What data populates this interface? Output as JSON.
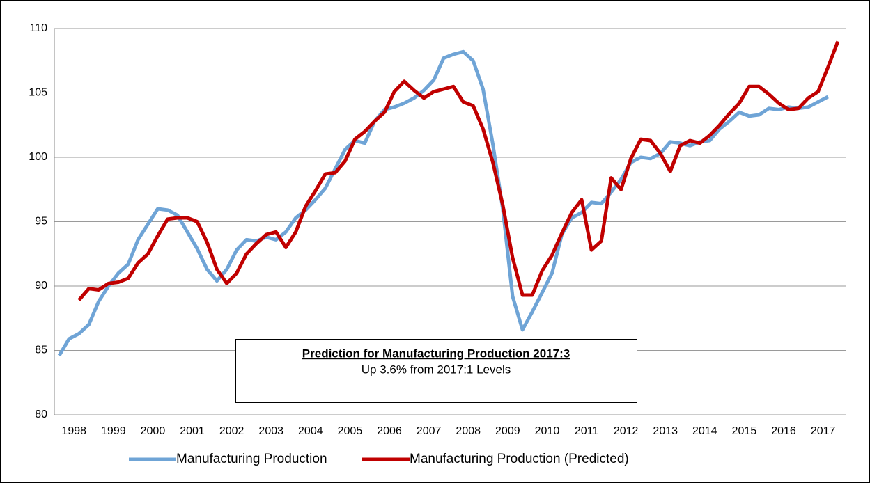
{
  "chart_data": {
    "type": "line",
    "categories": [
      null,
      "1998",
      null,
      null,
      null,
      "1999",
      null,
      null,
      null,
      "2000",
      null,
      null,
      null,
      "2001",
      null,
      null,
      null,
      "2002",
      null,
      null,
      null,
      "2003",
      null,
      null,
      null,
      "2004",
      null,
      null,
      null,
      "2005",
      null,
      null,
      null,
      "2006",
      null,
      null,
      null,
      "2007",
      null,
      null,
      null,
      "2008",
      null,
      null,
      null,
      "2009",
      null,
      null,
      null,
      "2010",
      null,
      null,
      null,
      "2011",
      null,
      null,
      null,
      "2012",
      null,
      null,
      null,
      "2013",
      null,
      null,
      null,
      "2014",
      null,
      null,
      null,
      "2015",
      null,
      null,
      null,
      "2016",
      null,
      null,
      null,
      "2017",
      null,
      null
    ],
    "series": [
      {
        "name": "Manufacturing Production",
        "color": "#6fa4d6",
        "values": [
          84.6,
          85.9,
          86.3,
          87.0,
          88.8,
          90.0,
          91.0,
          91.7,
          93.6,
          94.8,
          96.0,
          95.9,
          95.5,
          94.2,
          92.9,
          91.3,
          90.4,
          91.3,
          92.8,
          93.6,
          93.5,
          93.8,
          93.6,
          94.2,
          95.3,
          95.9,
          96.7,
          97.6,
          99.1,
          100.6,
          101.3,
          101.1,
          102.8,
          103.7,
          103.9,
          104.2,
          104.6,
          105.2,
          106.0,
          107.7,
          108.0,
          108.2,
          107.5,
          105.3,
          101.0,
          96.0,
          89.2,
          86.6,
          88.0,
          89.5,
          91.0,
          94.0,
          95.3,
          95.7,
          96.5,
          96.4,
          97.3,
          98.3,
          99.6,
          100.0,
          99.9,
          100.3,
          101.2,
          101.1,
          100.9,
          101.2,
          101.3,
          102.2,
          102.8,
          103.5,
          103.2,
          103.3,
          103.8,
          103.7,
          103.9,
          103.8,
          103.9,
          104.3,
          104.7,
          null
        ]
      },
      {
        "name": "Manufacturing Production (Predicted)",
        "color": "#c00000",
        "values": [
          null,
          null,
          88.9,
          89.8,
          89.7,
          90.2,
          90.3,
          90.6,
          91.8,
          92.5,
          93.9,
          95.2,
          95.3,
          95.3,
          95.0,
          93.4,
          91.3,
          90.2,
          91.0,
          92.5,
          93.3,
          94.0,
          94.2,
          93.0,
          94.2,
          96.2,
          97.4,
          98.7,
          98.8,
          99.7,
          101.4,
          102.0,
          102.8,
          103.5,
          105.1,
          105.9,
          105.2,
          104.6,
          105.1,
          105.3,
          105.5,
          104.3,
          104.0,
          102.2,
          99.6,
          96.3,
          92.2,
          89.3,
          89.3,
          91.2,
          92.4,
          94.1,
          95.7,
          96.7,
          92.8,
          93.5,
          98.4,
          97.5,
          99.9,
          101.4,
          101.3,
          100.3,
          98.9,
          100.9,
          101.3,
          101.1,
          101.7,
          102.5,
          103.4,
          104.2,
          105.5,
          105.5,
          104.9,
          104.2,
          103.7,
          103.8,
          104.6,
          105.1,
          107.0,
          109.0
        ]
      }
    ],
    "ylim": [
      80,
      110
    ],
    "yticks": [
      80,
      85,
      90,
      95,
      100,
      105,
      110
    ],
    "grid": true,
    "legend": "bottom",
    "annotation": {
      "title": "Prediction for Manufacturing Production 2017:3",
      "text": "Up 3.6% from 2017:1 Levels"
    }
  }
}
